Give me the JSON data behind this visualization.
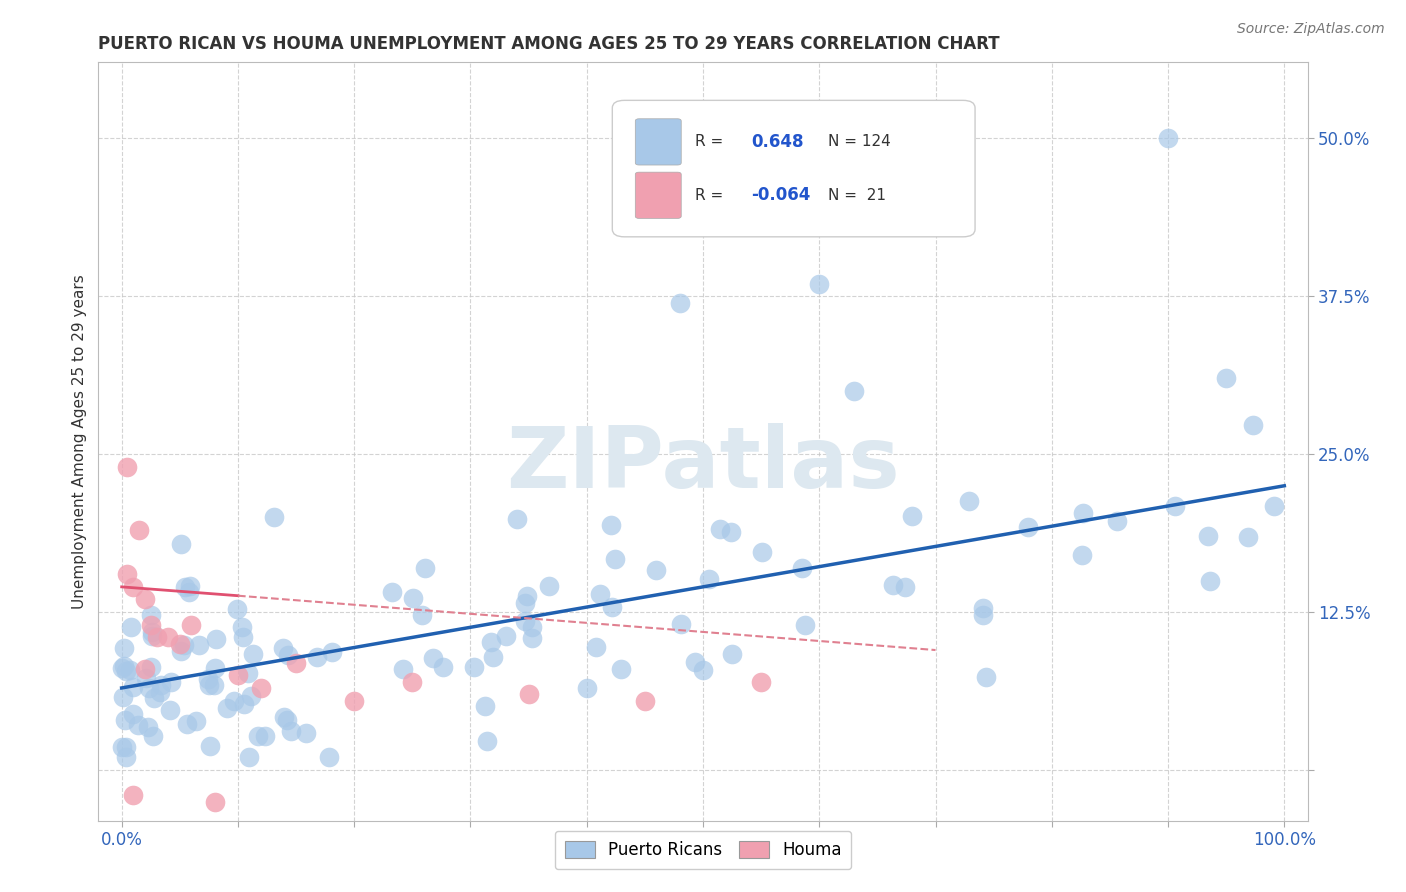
{
  "title": "PUERTO RICAN VS HOUMA UNEMPLOYMENT AMONG AGES 25 TO 29 YEARS CORRELATION CHART",
  "source": "Source: ZipAtlas.com",
  "ylabel": "Unemployment Among Ages 25 to 29 years",
  "xlim": [
    -0.02,
    1.02
  ],
  "ylim": [
    -0.04,
    0.56
  ],
  "xtick_positions": [
    0.0,
    0.1,
    0.2,
    0.3,
    0.4,
    0.5,
    0.6,
    0.7,
    0.8,
    0.9,
    1.0
  ],
  "xticklabels": [
    "0.0%",
    "",
    "",
    "",
    "",
    "",
    "",
    "",
    "",
    "",
    "100.0%"
  ],
  "ytick_positions": [
    0.0,
    0.125,
    0.25,
    0.375,
    0.5
  ],
  "yticklabels": [
    "",
    "12.5%",
    "25.0%",
    "37.5%",
    "50.0%"
  ],
  "pr_color": "#a8c8e8",
  "houma_color": "#f0a0b0",
  "pr_line_color": "#2060b0",
  "houma_line_solid_color": "#e05070",
  "houma_line_dash_color": "#e08090",
  "background_color": "#ffffff",
  "watermark_text": "ZIPatlas",
  "watermark_color": "#dde8f0",
  "grid_color": "#c8c8c8",
  "tick_color": "#3366bb",
  "title_color": "#333333",
  "ylabel_color": "#333333",
  "source_color": "#777777",
  "legend_text_color": "#333333",
  "legend_value_color": "#2255cc",
  "pr_r": "0.648",
  "pr_n": "124",
  "houma_r": "-0.064",
  "houma_n": "21",
  "pr_line_x0": 0.0,
  "pr_line_y0": 0.065,
  "pr_line_x1": 1.0,
  "pr_line_y1": 0.225,
  "houma_line_solid_x0": 0.0,
  "houma_line_solid_y0": 0.145,
  "houma_line_solid_x1": 0.1,
  "houma_line_solid_y1": 0.138,
  "houma_line_dash_x0": 0.1,
  "houma_line_dash_y0": 0.138,
  "houma_line_dash_x1": 0.7,
  "houma_line_dash_y1": 0.095
}
